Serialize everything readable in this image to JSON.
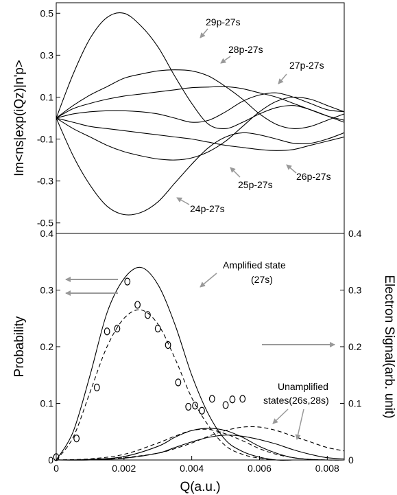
{
  "chart_data": [
    {
      "type": "line",
      "ylabel": "Im<ns|exp(iQz)|n'p>",
      "xlim": [
        0,
        0.0085
      ],
      "ylim": [
        -0.55,
        0.55
      ],
      "yticks": [
        "0.5",
        "0.3",
        "0.1",
        "-0.1",
        "-0.3",
        "-0.5"
      ],
      "series": [
        {
          "name": "29p-27s",
          "x": [
            0,
            0.0005,
            0.001,
            0.0015,
            0.002,
            0.0025,
            0.003,
            0.0035,
            0.004,
            0.0045,
            0.005,
            0.0055,
            0.006,
            0.0065,
            0.007,
            0.0075,
            0.008,
            0.0085
          ],
          "values": [
            0,
            0.21,
            0.38,
            0.48,
            0.5,
            0.44,
            0.34,
            0.2,
            0.07,
            -0.03,
            -0.05,
            -0.02,
            0.02,
            0.05,
            0.06,
            0.04,
            0.01,
            -0.02
          ]
        },
        {
          "name": "28p-27s",
          "x": [
            0,
            0.0005,
            0.001,
            0.0015,
            0.002,
            0.0025,
            0.003,
            0.0035,
            0.004,
            0.0045,
            0.005,
            0.0055,
            0.006,
            0.0065,
            0.007,
            0.0075,
            0.008,
            0.0085
          ],
          "values": [
            0,
            0.06,
            0.11,
            0.15,
            0.19,
            0.21,
            0.225,
            0.23,
            0.225,
            0.2,
            0.15,
            0.09,
            0.02,
            -0.03,
            -0.05,
            -0.04,
            -0.01,
            0.02
          ]
        },
        {
          "name": "27p-27s",
          "x": [
            0,
            0.0005,
            0.001,
            0.0015,
            0.002,
            0.0025,
            0.003,
            0.0035,
            0.004,
            0.0045,
            0.005,
            0.0055,
            0.006,
            0.0065,
            0.007,
            0.0075,
            0.008,
            0.0085
          ],
          "values": [
            0,
            0.045,
            0.07,
            0.09,
            0.105,
            0.115,
            0.125,
            0.135,
            0.145,
            0.148,
            0.15,
            0.14,
            0.12,
            0.1,
            0.07,
            0.04,
            0.01,
            -0.01
          ]
        },
        {
          "name": "",
          "x": [
            0,
            0.0005,
            0.001,
            0.0015,
            0.002,
            0.0025,
            0.003,
            0.0035,
            0.004,
            0.0045,
            0.005,
            0.0055,
            0.006,
            0.0065,
            0.007,
            0.0075,
            0.008,
            0.0085
          ],
          "values": [
            0,
            0.02,
            0.03,
            0.035,
            0.035,
            0.03,
            0.02,
            0.0,
            -0.02,
            -0.01,
            0.03,
            0.08,
            0.11,
            0.12,
            0.1,
            0.07,
            0.04,
            0.03
          ]
        },
        {
          "name": "25p-27s",
          "x": [
            0,
            0.0005,
            0.001,
            0.0015,
            0.002,
            0.0025,
            0.003,
            0.0035,
            0.004,
            0.0045,
            0.005,
            0.0055,
            0.006,
            0.0065,
            0.007,
            0.0075,
            0.008,
            0.0085
          ],
          "values": [
            0,
            -0.05,
            -0.09,
            -0.13,
            -0.16,
            -0.18,
            -0.195,
            -0.2,
            -0.19,
            -0.16,
            -0.11,
            -0.04,
            0.03,
            0.08,
            0.1,
            0.09,
            0.06,
            0.03
          ]
        },
        {
          "name": "26p-27s",
          "x": [
            0,
            0.0005,
            0.001,
            0.0015,
            0.002,
            0.0025,
            0.003,
            0.0035,
            0.004,
            0.0045,
            0.005,
            0.0055,
            0.006,
            0.0065,
            0.007,
            0.0075,
            0.008,
            0.0085
          ],
          "values": [
            0,
            -0.02,
            -0.04,
            -0.05,
            -0.06,
            -0.07,
            -0.08,
            -0.09,
            -0.1,
            -0.115,
            -0.13,
            -0.14,
            -0.15,
            -0.155,
            -0.15,
            -0.13,
            -0.11,
            -0.09
          ]
        },
        {
          "name": "24p-27s",
          "x": [
            0,
            0.0005,
            0.001,
            0.0015,
            0.002,
            0.0025,
            0.003,
            0.0035,
            0.004,
            0.0045,
            0.005,
            0.0055,
            0.006,
            0.0065,
            0.007,
            0.0075,
            0.008,
            0.0085
          ],
          "values": [
            0,
            -0.18,
            -0.32,
            -0.42,
            -0.46,
            -0.45,
            -0.4,
            -0.31,
            -0.22,
            -0.14,
            -0.09,
            -0.07,
            -0.08,
            -0.1,
            -0.12,
            -0.12,
            -0.1,
            -0.07
          ]
        }
      ]
    },
    {
      "type": "line",
      "xlabel": "Q(a.u.)",
      "ylabel": "Probability",
      "ylabel_right": "Electron Signal(arb. unit)",
      "xlim": [
        0,
        0.0085
      ],
      "ylim": [
        0,
        0.4
      ],
      "xticks": [
        "0",
        "0.002",
        "0.004",
        "0.006",
        "0.008"
      ],
      "yticks": [
        "0.4",
        "0.3",
        "0.2",
        "0.1",
        "0"
      ],
      "yticks_right": [
        "0.4",
        "0.3",
        "0.2",
        "0.1",
        "0"
      ],
      "series": [
        {
          "name": "27s (solid)",
          "style": "solid",
          "x": [
            0,
            0.0005,
            0.001,
            0.0015,
            0.002,
            0.0025,
            0.003,
            0.0035,
            0.004,
            0.0045,
            0.005,
            0.0055,
            0.006,
            0.0065,
            0.007,
            0.0075,
            0.008,
            0.0085
          ],
          "values": [
            0,
            0.05,
            0.15,
            0.26,
            0.32,
            0.34,
            0.31,
            0.24,
            0.15,
            0.08,
            0.035,
            0.015,
            0.005,
            0,
            0,
            0,
            0,
            0
          ]
        },
        {
          "name": "27s (dashed)",
          "style": "dashed",
          "x": [
            0,
            0.0005,
            0.001,
            0.0015,
            0.002,
            0.0025,
            0.003,
            0.0035,
            0.004,
            0.0045,
            0.005,
            0.0055,
            0.006,
            0.0065,
            0.007,
            0.0075,
            0.008,
            0.0085
          ],
          "values": [
            0,
            0.04,
            0.12,
            0.2,
            0.25,
            0.265,
            0.24,
            0.18,
            0.11,
            0.06,
            0.025,
            0.01,
            0.003,
            0,
            0,
            0,
            0,
            0
          ]
        },
        {
          "name": "26s (solid)",
          "style": "solid",
          "x": [
            0,
            0.001,
            0.002,
            0.003,
            0.0035,
            0.004,
            0.0045,
            0.005,
            0.0055,
            0.006,
            0.0065,
            0.007,
            0.0075,
            0.008,
            0.0085
          ],
          "values": [
            0,
            0.001,
            0.006,
            0.024,
            0.04,
            0.052,
            0.056,
            0.052,
            0.04,
            0.024,
            0.012,
            0.004,
            0.001,
            0,
            0
          ]
        },
        {
          "name": "28s (solid)",
          "style": "solid",
          "x": [
            0,
            0.001,
            0.002,
            0.003,
            0.0035,
            0.004,
            0.0045,
            0.005,
            0.0055,
            0.006,
            0.0065,
            0.007,
            0.0075,
            0.008,
            0.0085
          ],
          "values": [
            0,
            0,
            0.003,
            0.012,
            0.022,
            0.032,
            0.04,
            0.044,
            0.042,
            0.036,
            0.028,
            0.018,
            0.01,
            0.004,
            0.002
          ]
        },
        {
          "name": "26s (dashed)",
          "style": "dashed",
          "x": [
            0,
            0.001,
            0.002,
            0.003,
            0.0035,
            0.004,
            0.0045,
            0.005,
            0.0055,
            0.006,
            0.0065,
            0.007,
            0.0075,
            0.008,
            0.0085
          ],
          "values": [
            0,
            0.002,
            0.01,
            0.03,
            0.042,
            0.052,
            0.054,
            0.046,
            0.034,
            0.02,
            0.01,
            0.004,
            0.001,
            0,
            0
          ]
        },
        {
          "name": "28s (dashed)",
          "style": "dashed",
          "x": [
            0,
            0.001,
            0.002,
            0.003,
            0.0035,
            0.004,
            0.0045,
            0.005,
            0.0055,
            0.006,
            0.0065,
            0.007,
            0.0075,
            0.008,
            0.0085
          ],
          "values": [
            0,
            0.001,
            0.004,
            0.012,
            0.02,
            0.03,
            0.042,
            0.052,
            0.058,
            0.058,
            0.052,
            0.042,
            0.032,
            0.022,
            0.016
          ]
        },
        {
          "name": "Electron signal (circles)",
          "style": "markers",
          "x": [
            0,
            0.0006,
            0.0012,
            0.0015,
            0.0018,
            0.0021,
            0.0024,
            0.0027,
            0.003,
            0.0033,
            0.0036,
            0.0039,
            0.0041,
            0.0043,
            0.0046,
            0.005,
            0.0052,
            0.0055
          ],
          "values": [
            0.005,
            0.038,
            0.128,
            0.227,
            0.232,
            0.315,
            0.274,
            0.256,
            0.232,
            0.203,
            0.137,
            0.094,
            0.096,
            0.087,
            0.108,
            0.097,
            0.107,
            0.108
          ]
        }
      ]
    }
  ],
  "annotations": {
    "top": [
      "29p-27s",
      "28p-27s",
      "27p-27s",
      "26p-27s",
      "25p-27s",
      "24p-27s"
    ],
    "amplified": [
      "Amplified state",
      "(27s)"
    ],
    "unamplified": [
      "Unamplified",
      "states(26s,28s)"
    ]
  }
}
